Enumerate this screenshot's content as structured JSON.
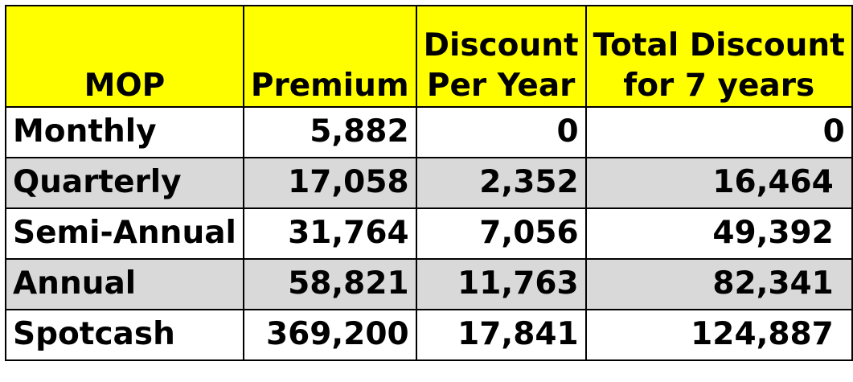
{
  "headers": {
    "mop": "MOP",
    "premium": "Premium",
    "discount_line1": "Discount",
    "discount_line2": "Per Year",
    "total_line1": "Total Discount",
    "total_line2": "for 7 years"
  },
  "rows": [
    {
      "mop": "Monthly",
      "premium": "5,882",
      "discount": "0",
      "total": "0"
    },
    {
      "mop": "Quarterly",
      "premium": "17,058",
      "discount": "2,352",
      "total": "16,464"
    },
    {
      "mop": "Semi-Annual",
      "premium": "31,764",
      "discount": "7,056",
      "total": "49,392"
    },
    {
      "mop": "Annual",
      "premium": "58,821",
      "discount": "11,763",
      "total": "82,341"
    },
    {
      "mop": "Spotcash",
      "premium": "369,200",
      "discount": "17,841",
      "total": "124,887"
    }
  ],
  "colors": {
    "header_bg": "#ffff00",
    "shaded_row_bg": "#d9d9d9",
    "text": "#000000"
  }
}
